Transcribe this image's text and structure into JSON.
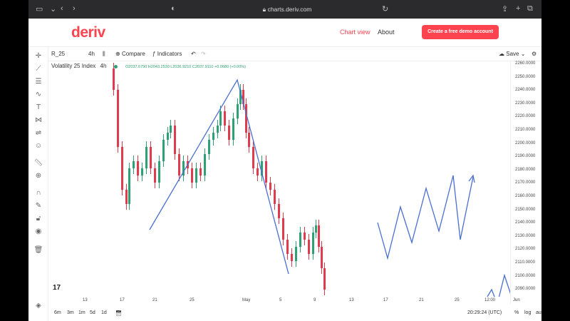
{
  "browser": {
    "url": "charts.deriv.com"
  },
  "site": {
    "logo": "deriv",
    "nav": [
      "Chart view",
      "About"
    ],
    "cta": "Create a free demo account"
  },
  "toolbar": {
    "symbol": "R_25",
    "interval": "4h",
    "compare": "Compare",
    "indicators": "Indicators",
    "save": "Save"
  },
  "instrument": {
    "name": "Volatility 25 Index",
    "interval": "4h",
    "ohlc": "O2037.6790 H2043.2530 L2036.9210 C2037.9110 +0.0680 (+0.00%)"
  },
  "yaxis": {
    "labels": [
      "2260.0000",
      "2250.0000",
      "2240.0000",
      "2230.0000",
      "2220.0000",
      "2210.0000",
      "2200.0000",
      "2190.0000",
      "2180.0000",
      "2170.0000",
      "2160.0000",
      "2150.0000",
      "2140.0000",
      "2130.0000",
      "2120.0000",
      "2110.0000",
      "2100.0000",
      "2090.0000"
    ],
    "range": [
      2085,
      2263
    ]
  },
  "xaxis": {
    "labels": [
      "13",
      "17",
      "21",
      "25",
      "May",
      "5",
      "9",
      "13",
      "17",
      "21",
      "25",
      "12:00",
      "Jun"
    ]
  },
  "bottom": {
    "ranges": [
      "6m",
      "3m",
      "1m",
      "5d",
      "1d"
    ],
    "time": "20:29:24 (UTC)",
    "percent": "%",
    "log": "log",
    "auto": "auto"
  },
  "colors": {
    "brand": "#ff444f",
    "up": "#2ea073",
    "down": "#e03a4e",
    "drawing": "#4a6fd0"
  },
  "icons": [
    "crosshair-icon",
    "line-icon",
    "channel-icon",
    "wave-icon",
    "text-icon",
    "pattern-icon",
    "levels-icon",
    "emoji-icon",
    "ruler-icon",
    "zoom-icon",
    "magnet-icon",
    "lock-draw-icon",
    "lock-icon",
    "eye-icon",
    "trash-icon",
    "layers-icon"
  ]
}
